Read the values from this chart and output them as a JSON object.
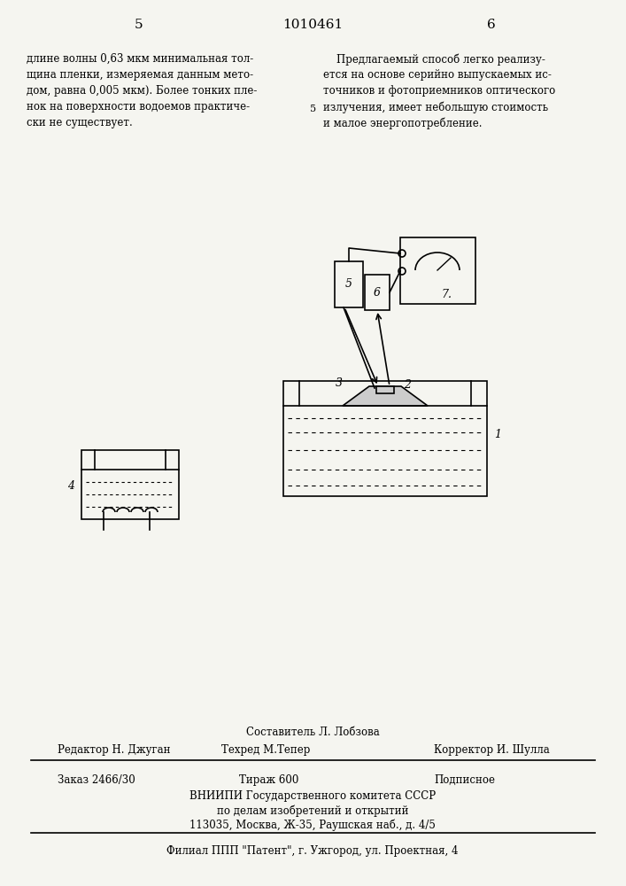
{
  "page_num_left": "5",
  "patent_num": "1010461",
  "page_num_right": "6",
  "col1_text": "длине волны 0,63 мкм минимальная тол-\nщина пленки, измеряемая данным мето-\nдом, равна 0,005 мкм). Более тонких пле-\nнок на поверхности водоемов практиче-\nски не существует.",
  "col2_text": "    Предлагаемый способ легко реализу-\nется на основе серийно выпускаемых ис-\nточников и фотоприемников оптического\nизлучения, имеет небольшую стоимость\nи малое энергопотребление.",
  "line_num": "5",
  "footer_line1": "Составитель Л. Лобзова",
  "footer_editor": "Редактор Н. Джуган",
  "footer_techred": "Техред М.Тепер",
  "footer_corrector": "Корректор И. Шулла",
  "footer_order": "Заказ 2466/30",
  "footer_tirazh": "Тираж 600",
  "footer_podpisnoe": "Подписное",
  "footer_org1": "ВНИИПИ Государственного комитета СССР",
  "footer_org2": "по делам изобретений и открытий",
  "footer_org3": "113035, Москва, Ж-35, Раушская наб., д. 4/5",
  "footer_filial": "Филиал ППП \"Патент\", г. Ужгород, ул. Проектная, 4",
  "bg_color": "#f5f5f0"
}
